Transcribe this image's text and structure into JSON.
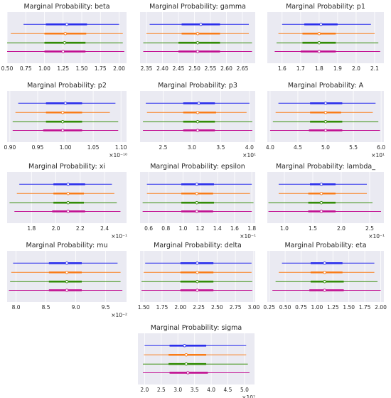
{
  "figure": {
    "background": "#ffffff",
    "panel_background": "#eaeaf2",
    "grid_color": "#ffffff",
    "series_colors": [
      "#2a2eec",
      "#fa7c17",
      "#328c06",
      "#c10c90"
    ]
  },
  "chart_data": [
    {
      "type": "forest",
      "title": "Marginal Probability: beta",
      "xlim": [
        0.5,
        2.1
      ],
      "xticks": [
        "0.50",
        "0.75",
        "1.00",
        "1.25",
        "1.50",
        "1.75",
        "2.00"
      ],
      "multiplier": "",
      "series": [
        {
          "low": 0.72,
          "q1": 1.02,
          "median": 1.3,
          "q3": 1.57,
          "high": 2.0
        },
        {
          "low": 0.55,
          "q1": 1.0,
          "median": 1.28,
          "q3": 1.56,
          "high": 2.05
        },
        {
          "low": 0.5,
          "q1": 1.0,
          "median": 1.27,
          "q3": 1.55,
          "high": 2.05
        },
        {
          "low": 0.5,
          "q1": 1.0,
          "median": 1.25,
          "q3": 1.55,
          "high": 2.07
        }
      ]
    },
    {
      "type": "forest",
      "title": "Marginal Probability: gamma",
      "xlim": [
        2.33,
        2.69
      ],
      "xticks": [
        "2.35",
        "2.40",
        "2.45",
        "2.50",
        "2.55",
        "2.60",
        "2.65"
      ],
      "multiplier": "",
      "series": [
        {
          "low": 2.36,
          "q1": 2.46,
          "median": 2.52,
          "q3": 2.58,
          "high": 2.67
        },
        {
          "low": 2.35,
          "q1": 2.46,
          "median": 2.51,
          "q3": 2.58,
          "high": 2.67
        },
        {
          "low": 2.34,
          "q1": 2.45,
          "median": 2.51,
          "q3": 2.58,
          "high": 2.68
        },
        {
          "low": 2.34,
          "q1": 2.45,
          "median": 2.51,
          "q3": 2.58,
          "high": 2.68
        }
      ]
    },
    {
      "type": "forest",
      "title": "Marginal Probability: p1",
      "xlim": [
        1.52,
        2.15
      ],
      "xticks": [
        "1.6",
        "1.7",
        "1.8",
        "1.9",
        "2.0",
        "2.1"
      ],
      "multiplier": "",
      "series": [
        {
          "low": 1.6,
          "q1": 1.72,
          "median": 1.81,
          "q3": 1.9,
          "high": 2.08
        },
        {
          "low": 1.58,
          "q1": 1.71,
          "median": 1.8,
          "q3": 1.89,
          "high": 2.1
        },
        {
          "low": 1.57,
          "q1": 1.71,
          "median": 1.8,
          "q3": 1.89,
          "high": 2.12
        },
        {
          "low": 1.56,
          "q1": 1.7,
          "median": 1.8,
          "q3": 1.89,
          "high": 2.13
        }
      ]
    },
    {
      "type": "forest",
      "title": "Marginal Probability: p2",
      "xlim": [
        0.895,
        1.11
      ],
      "xticks": [
        "0.90",
        "0.95",
        "1.00",
        "1.05",
        "1.10"
      ],
      "multiplier": "×10⁻¹⁰",
      "series": [
        {
          "low": 0.915,
          "q1": 0.965,
          "median": 1.0,
          "q3": 1.03,
          "high": 1.09
        },
        {
          "low": 0.91,
          "q1": 0.965,
          "median": 0.995,
          "q3": 1.03,
          "high": 1.08
        },
        {
          "low": 0.905,
          "q1": 0.965,
          "median": 0.995,
          "q3": 1.03,
          "high": 1.095
        },
        {
          "low": 0.905,
          "q1": 0.96,
          "median": 0.995,
          "q3": 1.03,
          "high": 1.095
        }
      ]
    },
    {
      "type": "forest",
      "title": "Marginal Probability: p3",
      "xlim": [
        2.1,
        4.1
      ],
      "xticks": [
        "2.5",
        "3.0",
        "3.5",
        "4.0"
      ],
      "multiplier": "×10¹",
      "series": [
        {
          "low": 2.2,
          "q1": 2.85,
          "median": 3.12,
          "q3": 3.4,
          "high": 4.0
        },
        {
          "low": 2.22,
          "q1": 2.85,
          "median": 3.1,
          "q3": 3.42,
          "high": 3.95
        },
        {
          "low": 2.15,
          "q1": 2.85,
          "median": 3.1,
          "q3": 3.4,
          "high": 4.05
        },
        {
          "low": 2.15,
          "q1": 2.85,
          "median": 3.1,
          "q3": 3.4,
          "high": 4.05
        }
      ]
    },
    {
      "type": "forest",
      "title": "Marginal Probability: A",
      "xlim": [
        3.95,
        6.05
      ],
      "xticks": [
        "4.0",
        "4.5",
        "5.0",
        "5.5",
        "6.0"
      ],
      "multiplier": "×10¹",
      "series": [
        {
          "low": 4.15,
          "q1": 4.72,
          "median": 5.0,
          "q3": 5.3,
          "high": 5.9
        },
        {
          "low": 4.1,
          "q1": 4.72,
          "median": 5.0,
          "q3": 5.28,
          "high": 5.85
        },
        {
          "low": 4.05,
          "q1": 4.72,
          "median": 5.0,
          "q3": 5.3,
          "high": 5.95
        },
        {
          "low": 4.0,
          "q1": 4.7,
          "median": 5.0,
          "q3": 5.3,
          "high": 5.98
        }
      ]
    },
    {
      "type": "forest",
      "title": "Marginal Probability: xi",
      "xlim": [
        1.6,
        2.58
      ],
      "xticks": [
        "1.8",
        "2.0",
        "2.2",
        "2.4"
      ],
      "multiplier": "×10⁻¹",
      "series": [
        {
          "low": 1.7,
          "q1": 1.98,
          "median": 2.1,
          "q3": 2.24,
          "high": 2.46
        },
        {
          "low": 1.68,
          "q1": 1.98,
          "median": 2.1,
          "q3": 2.23,
          "high": 2.48
        },
        {
          "low": 1.62,
          "q1": 1.98,
          "median": 2.1,
          "q3": 2.23,
          "high": 2.5
        },
        {
          "low": 1.66,
          "q1": 1.97,
          "median": 2.1,
          "q3": 2.24,
          "high": 2.53
        }
      ]
    },
    {
      "type": "forest",
      "title": "Marginal Probability: epsilon",
      "xlim": [
        0.5,
        1.84
      ],
      "xticks": [
        "0.6",
        "0.8",
        "1.0",
        "1.2",
        "1.4",
        "1.6",
        "1.8"
      ],
      "multiplier": "×10⁻¹",
      "series": [
        {
          "low": 0.58,
          "q1": 0.98,
          "median": 1.16,
          "q3": 1.36,
          "high": 1.8
        },
        {
          "low": 0.58,
          "q1": 0.98,
          "median": 1.16,
          "q3": 1.35,
          "high": 1.78
        },
        {
          "low": 0.53,
          "q1": 0.98,
          "median": 1.16,
          "q3": 1.36,
          "high": 1.82
        },
        {
          "low": 0.53,
          "q1": 0.98,
          "median": 1.16,
          "q3": 1.35,
          "high": 1.8
        }
      ]
    },
    {
      "type": "forest",
      "title": "Marginal Probability: lambda_",
      "xlim": [
        0.7,
        2.75
      ],
      "xticks": [
        "1.0",
        "1.5",
        "2.0",
        "2.5"
      ],
      "multiplier": "×10⁻¹",
      "series": [
        {
          "low": 0.9,
          "q1": 1.45,
          "median": 1.65,
          "q3": 1.9,
          "high": 2.45
        },
        {
          "low": 0.9,
          "q1": 1.42,
          "median": 1.65,
          "q3": 1.9,
          "high": 2.45
        },
        {
          "low": 0.72,
          "q1": 1.42,
          "median": 1.65,
          "q3": 1.9,
          "high": 2.55
        },
        {
          "low": 0.72,
          "q1": 1.42,
          "median": 1.65,
          "q3": 1.9,
          "high": 2.7
        }
      ]
    },
    {
      "type": "forest",
      "title": "Marginal Probability: mu",
      "xlim": [
        7.85,
        9.85
      ],
      "xticks": [
        "8.0",
        "8.5",
        "9.0",
        "9.5"
      ],
      "multiplier": "×10⁻²",
      "series": [
        {
          "low": 7.95,
          "q1": 8.55,
          "median": 8.85,
          "q3": 9.1,
          "high": 9.7
        },
        {
          "low": 7.92,
          "q1": 8.55,
          "median": 8.85,
          "q3": 9.1,
          "high": 9.75
        },
        {
          "low": 7.9,
          "q1": 8.55,
          "median": 8.85,
          "q3": 9.1,
          "high": 9.75
        },
        {
          "low": 7.88,
          "q1": 8.55,
          "median": 8.85,
          "q3": 9.1,
          "high": 9.78
        }
      ]
    },
    {
      "type": "forest",
      "title": "Marginal Probability: delta",
      "xlim": [
        1.45,
        3.02
      ],
      "xticks": [
        "1.50",
        "1.75",
        "2.00",
        "2.25",
        "2.50",
        "2.75",
        "3.00"
      ],
      "multiplier": "",
      "series": [
        {
          "low": 1.52,
          "q1": 2.0,
          "median": 2.23,
          "q3": 2.45,
          "high": 2.97
        },
        {
          "low": 1.5,
          "q1": 2.0,
          "median": 2.23,
          "q3": 2.45,
          "high": 2.97
        },
        {
          "low": 1.47,
          "q1": 2.0,
          "median": 2.23,
          "q3": 2.45,
          "high": 2.98
        },
        {
          "low": 1.47,
          "q1": 2.0,
          "median": 2.23,
          "q3": 2.45,
          "high": 2.98
        }
      ]
    },
    {
      "type": "forest",
      "title": "Marginal Probability: eta",
      "xlim": [
        0.22,
        2.05
      ],
      "xticks": [
        "0.25",
        "0.50",
        "0.75",
        "1.00",
        "1.25",
        "1.50",
        "1.75",
        "2.00"
      ],
      "multiplier": "",
      "series": [
        {
          "low": 0.45,
          "q1": 0.9,
          "median": 1.12,
          "q3": 1.4,
          "high": 1.9
        },
        {
          "low": 0.4,
          "q1": 0.9,
          "median": 1.12,
          "q3": 1.4,
          "high": 1.9
        },
        {
          "low": 0.35,
          "q1": 0.9,
          "median": 1.12,
          "q3": 1.42,
          "high": 1.95
        },
        {
          "low": 0.3,
          "q1": 0.88,
          "median": 1.12,
          "q3": 1.42,
          "high": 2.0
        }
      ]
    },
    {
      "type": "forest",
      "title": "Marginal Probability: sigma",
      "xlim": [
        1.8,
        5.3
      ],
      "xticks": [
        "2.0",
        "2.5",
        "3.0",
        "3.5",
        "4.0",
        "4.5",
        "5.0"
      ],
      "multiplier": "×10⁷",
      "series": [
        {
          "low": 2.0,
          "q1": 2.75,
          "median": 3.2,
          "q3": 3.85,
          "high": 5.05
        },
        {
          "low": 1.98,
          "q1": 2.72,
          "median": 3.25,
          "q3": 3.85,
          "high": 5.05
        },
        {
          "low": 1.95,
          "q1": 2.72,
          "median": 3.25,
          "q3": 3.85,
          "high": 5.1
        },
        {
          "low": 1.95,
          "q1": 2.75,
          "median": 3.3,
          "q3": 3.9,
          "high": 5.15
        }
      ]
    }
  ]
}
